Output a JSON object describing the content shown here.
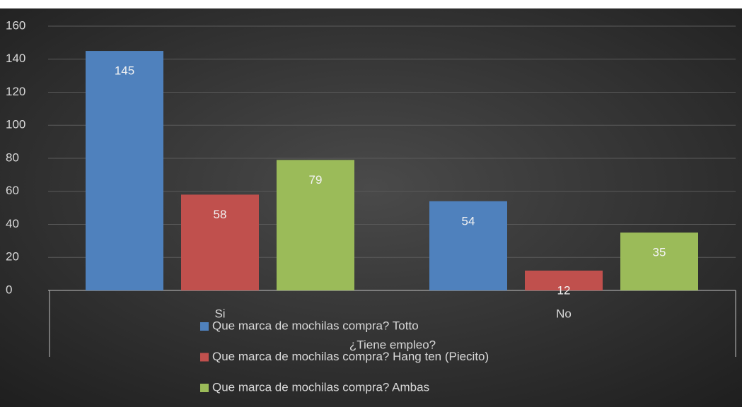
{
  "chart_data": {
    "type": "bar",
    "x_label": "¿Tiene empleo?",
    "categories": [
      "Si",
      "No"
    ],
    "series": [
      {
        "name": "Que marca de mochilas compra? Totto",
        "color": "#4f81bd",
        "values": [
          145,
          54
        ]
      },
      {
        "name": "Que marca de mochilas compra? Hang ten (Piecito)",
        "color": "#c0504d",
        "values": [
          58,
          12
        ]
      },
      {
        "name": "Que marca de mochilas compra? Ambas",
        "color": "#9bbb59",
        "values": [
          79,
          35
        ]
      }
    ],
    "ylim": [
      0,
      160
    ],
    "yticks": [
      0,
      20,
      40,
      60,
      80,
      100,
      120,
      140,
      160
    ],
    "grid": true
  }
}
